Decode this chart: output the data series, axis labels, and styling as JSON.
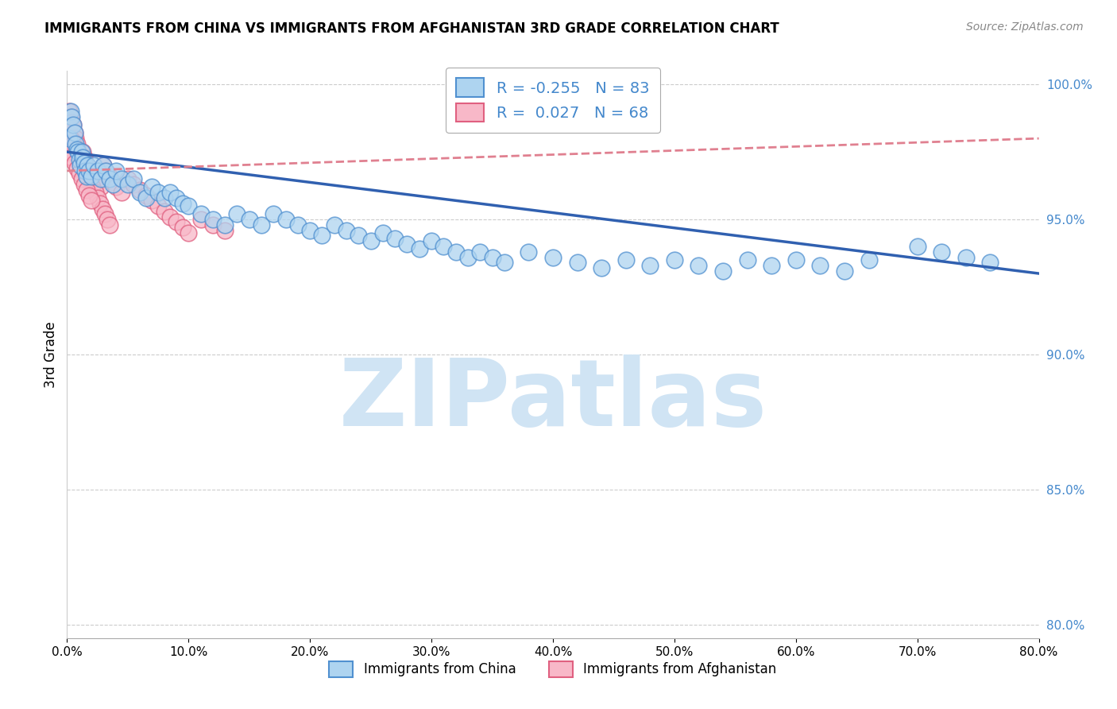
{
  "title": "IMMIGRANTS FROM CHINA VS IMMIGRANTS FROM AFGHANISTAN 3RD GRADE CORRELATION CHART",
  "source": "Source: ZipAtlas.com",
  "ylabel": "3rd Grade",
  "legend_label1": "Immigrants from China",
  "legend_label2": "Immigrants from Afghanistan",
  "R1": -0.255,
  "N1": 83,
  "R2": 0.027,
  "N2": 68,
  "xlim": [
    0.0,
    0.8
  ],
  "ylim": [
    0.795,
    1.005
  ],
  "xticks": [
    0.0,
    0.1,
    0.2,
    0.3,
    0.4,
    0.5,
    0.6,
    0.7,
    0.8
  ],
  "yticks": [
    0.8,
    0.85,
    0.9,
    0.95,
    1.0
  ],
  "ytick_labels": [
    "80.0%",
    "85.0%",
    "90.0%",
    "95.0%",
    "100.0%"
  ],
  "xtick_labels": [
    "0.0%",
    "10.0%",
    "20.0%",
    "30.0%",
    "40.0%",
    "50.0%",
    "60.0%",
    "70.0%",
    "80.0%"
  ],
  "color_china_fill": "#AED4F0",
  "color_china_edge": "#5090D0",
  "color_afghanistan_fill": "#F8B8C8",
  "color_afghanistan_edge": "#E06080",
  "color_line_china": "#3060B0",
  "color_line_afghanistan": "#E08090",
  "watermark": "ZIPatlas",
  "watermark_color": "#D0E4F4",
  "china_x": [
    0.002,
    0.003,
    0.004,
    0.005,
    0.006,
    0.007,
    0.008,
    0.009,
    0.01,
    0.011,
    0.012,
    0.013,
    0.014,
    0.015,
    0.016,
    0.017,
    0.018,
    0.02,
    0.022,
    0.025,
    0.028,
    0.03,
    0.032,
    0.035,
    0.038,
    0.04,
    0.045,
    0.05,
    0.055,
    0.06,
    0.065,
    0.07,
    0.075,
    0.08,
    0.085,
    0.09,
    0.095,
    0.1,
    0.11,
    0.12,
    0.13,
    0.14,
    0.15,
    0.16,
    0.17,
    0.18,
    0.19,
    0.2,
    0.21,
    0.22,
    0.23,
    0.24,
    0.25,
    0.26,
    0.27,
    0.28,
    0.29,
    0.3,
    0.31,
    0.32,
    0.33,
    0.34,
    0.35,
    0.36,
    0.38,
    0.4,
    0.42,
    0.44,
    0.46,
    0.48,
    0.5,
    0.52,
    0.54,
    0.56,
    0.58,
    0.6,
    0.62,
    0.64,
    0.66,
    0.7,
    0.72,
    0.74,
    0.76
  ],
  "china_y": [
    0.98,
    0.99,
    0.988,
    0.985,
    0.982,
    0.978,
    0.976,
    0.975,
    0.972,
    0.97,
    0.975,
    0.973,
    0.971,
    0.968,
    0.966,
    0.97,
    0.968,
    0.966,
    0.97,
    0.968,
    0.965,
    0.97,
    0.968,
    0.965,
    0.963,
    0.968,
    0.965,
    0.963,
    0.965,
    0.96,
    0.958,
    0.962,
    0.96,
    0.958,
    0.96,
    0.958,
    0.956,
    0.955,
    0.952,
    0.95,
    0.948,
    0.952,
    0.95,
    0.948,
    0.952,
    0.95,
    0.948,
    0.946,
    0.944,
    0.948,
    0.946,
    0.944,
    0.942,
    0.945,
    0.943,
    0.941,
    0.939,
    0.942,
    0.94,
    0.938,
    0.936,
    0.938,
    0.936,
    0.934,
    0.938,
    0.936,
    0.934,
    0.932,
    0.935,
    0.933,
    0.935,
    0.933,
    0.931,
    0.935,
    0.933,
    0.935,
    0.933,
    0.931,
    0.935,
    0.94,
    0.938,
    0.936,
    0.934
  ],
  "afghanistan_x": [
    0.002,
    0.003,
    0.004,
    0.005,
    0.006,
    0.007,
    0.008,
    0.009,
    0.01,
    0.011,
    0.012,
    0.013,
    0.014,
    0.015,
    0.016,
    0.017,
    0.018,
    0.02,
    0.022,
    0.025,
    0.028,
    0.03,
    0.032,
    0.035,
    0.038,
    0.04,
    0.045,
    0.05,
    0.055,
    0.06,
    0.065,
    0.07,
    0.075,
    0.08,
    0.085,
    0.09,
    0.095,
    0.1,
    0.11,
    0.12,
    0.13,
    0.003,
    0.005,
    0.007,
    0.009,
    0.011,
    0.013,
    0.015,
    0.017,
    0.019,
    0.021,
    0.023,
    0.025,
    0.027,
    0.029,
    0.031,
    0.033,
    0.035,
    0.002,
    0.004,
    0.006,
    0.008,
    0.01,
    0.012,
    0.014,
    0.016,
    0.018,
    0.02
  ],
  "afghanistan_y": [
    0.99,
    0.988,
    0.986,
    0.985,
    0.982,
    0.98,
    0.978,
    0.976,
    0.974,
    0.972,
    0.97,
    0.975,
    0.973,
    0.971,
    0.969,
    0.967,
    0.965,
    0.968,
    0.966,
    0.964,
    0.962,
    0.97,
    0.968,
    0.966,
    0.964,
    0.962,
    0.96,
    0.965,
    0.963,
    0.961,
    0.959,
    0.957,
    0.955,
    0.953,
    0.951,
    0.949,
    0.947,
    0.945,
    0.95,
    0.948,
    0.946,
    0.98,
    0.978,
    0.976,
    0.974,
    0.972,
    0.97,
    0.968,
    0.966,
    0.964,
    0.962,
    0.96,
    0.958,
    0.956,
    0.954,
    0.952,
    0.95,
    0.948,
    0.975,
    0.973,
    0.971,
    0.969,
    0.967,
    0.965,
    0.963,
    0.961,
    0.959,
    0.957
  ],
  "china_trend_x": [
    0.0,
    0.8
  ],
  "china_trend_y": [
    0.975,
    0.93
  ],
  "afghan_trend_x": [
    0.0,
    0.8
  ],
  "afghan_trend_y": [
    0.968,
    0.98
  ]
}
